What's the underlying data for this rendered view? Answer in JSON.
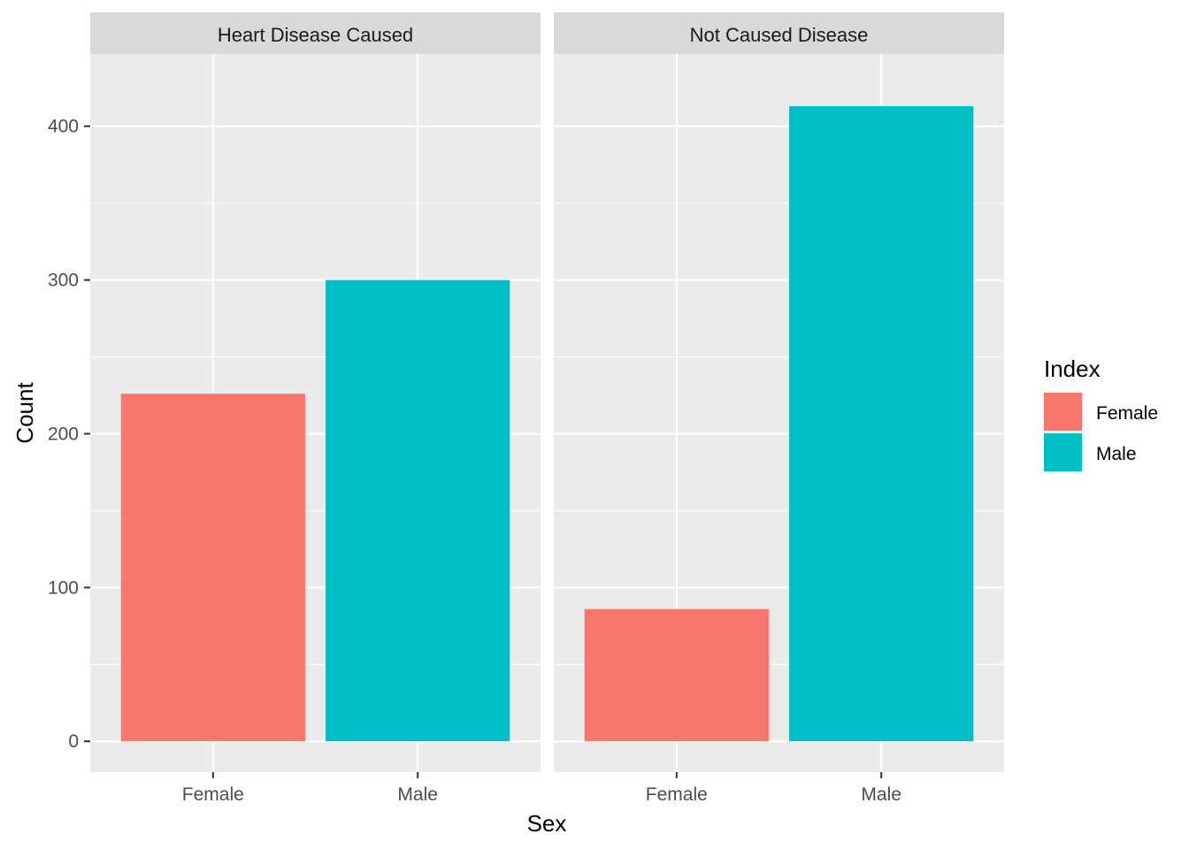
{
  "chart_data": {
    "type": "bar",
    "facets": [
      {
        "name": "Heart Disease Caused",
        "categories": [
          "Female",
          "Male"
        ],
        "values": [
          226,
          300
        ]
      },
      {
        "name": "Not Caused Disease",
        "categories": [
          "Female",
          "Male"
        ],
        "values": [
          86,
          413
        ]
      }
    ],
    "xlabel": "Sex",
    "ylabel": "Count",
    "ylim": [
      -20,
      447
    ],
    "y_ticks": [
      0,
      100,
      200,
      300,
      400
    ],
    "grid": true,
    "legend": {
      "title": "Index",
      "placement": "right",
      "entries": [
        {
          "label": "Female",
          "color": "#F8766D"
        },
        {
          "label": "Male",
          "color": "#00BFC4"
        }
      ]
    },
    "colors": {
      "Female": "#F8766D",
      "Male": "#00BFC4",
      "panel_background": "#EBEBEB",
      "strip_background": "#D9D9D9",
      "grid": "#FFFFFF"
    }
  }
}
